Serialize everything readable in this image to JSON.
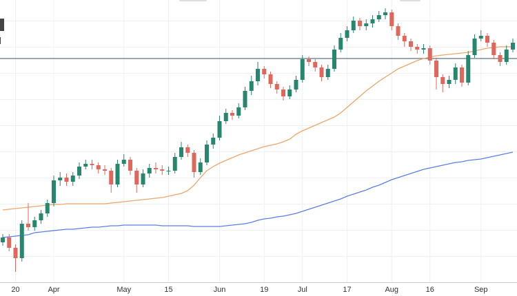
{
  "chart_data": {
    "type": "candlestick",
    "categories": [
      null,
      null,
      "20",
      null,
      null,
      null,
      null,
      null,
      "Apr",
      null,
      null,
      null,
      null,
      null,
      null,
      null,
      null,
      null,
      null,
      "May",
      null,
      null,
      null,
      null,
      null,
      null,
      "15",
      null,
      null,
      null,
      null,
      null,
      null,
      null,
      "Jun",
      null,
      null,
      null,
      null,
      null,
      null,
      "19",
      null,
      null,
      null,
      null,
      null,
      "Jul",
      null,
      null,
      null,
      null,
      null,
      null,
      "17",
      null,
      null,
      null,
      null,
      null,
      null,
      "Aug",
      null,
      null,
      null,
      null,
      null,
      "16",
      null,
      null,
      null,
      null,
      null,
      null,
      null,
      "Sep",
      null,
      null,
      null,
      null,
      null
    ],
    "open": [
      78,
      85,
      70,
      55,
      105,
      100,
      110,
      120,
      135,
      168,
      172,
      166,
      175,
      188,
      192,
      190,
      184,
      182,
      162,
      192,
      198,
      182,
      162,
      178,
      186,
      184,
      182,
      182,
      202,
      216,
      208,
      180,
      194,
      220,
      230,
      254,
      266,
      262,
      274,
      298,
      312,
      330,
      322,
      308,
      300,
      290,
      300,
      314,
      344,
      340,
      332,
      318,
      330,
      358,
      375,
      386,
      400,
      392,
      396,
      402,
      408,
      412,
      392,
      378,
      370,
      362,
      358,
      360,
      342,
      318,
      308,
      314,
      332,
      310,
      350,
      374,
      378,
      368,
      350,
      340,
      358
    ],
    "high": [
      90,
      90,
      75,
      110,
      135,
      115,
      125,
      140,
      175,
      180,
      178,
      180,
      194,
      198,
      198,
      194,
      190,
      186,
      198,
      206,
      202,
      186,
      184,
      192,
      194,
      190,
      188,
      208,
      224,
      220,
      212,
      200,
      226,
      236,
      262,
      272,
      270,
      280,
      304,
      320,
      340,
      334,
      326,
      312,
      304,
      306,
      320,
      350,
      348,
      344,
      336,
      336,
      364,
      382,
      392,
      406,
      404,
      402,
      408,
      414,
      418,
      416,
      396,
      382,
      374,
      366,
      366,
      364,
      346,
      322,
      320,
      338,
      336,
      356,
      380,
      386,
      382,
      372,
      354,
      364,
      374
    ],
    "low": [
      73,
      65,
      35,
      50,
      95,
      95,
      105,
      115,
      130,
      160,
      160,
      160,
      170,
      184,
      184,
      178,
      176,
      150,
      158,
      188,
      176,
      150,
      158,
      172,
      178,
      176,
      176,
      178,
      198,
      202,
      172,
      176,
      190,
      214,
      226,
      250,
      256,
      258,
      270,
      292,
      306,
      316,
      302,
      294,
      284,
      286,
      296,
      310,
      334,
      326,
      312,
      314,
      326,
      354,
      370,
      382,
      386,
      386,
      390,
      398,
      402,
      386,
      372,
      362,
      356,
      352,
      352,
      336,
      300,
      296,
      302,
      308,
      304,
      306,
      346,
      370,
      362,
      344,
      334,
      336,
      354
    ],
    "close": [
      85,
      70,
      55,
      105,
      100,
      110,
      120,
      135,
      168,
      172,
      166,
      175,
      188,
      192,
      190,
      184,
      182,
      162,
      192,
      198,
      182,
      162,
      178,
      186,
      184,
      182,
      182,
      202,
      216,
      208,
      180,
      194,
      220,
      230,
      254,
      266,
      262,
      274,
      298,
      312,
      330,
      322,
      308,
      300,
      290,
      300,
      314,
      344,
      340,
      332,
      318,
      330,
      358,
      375,
      386,
      400,
      392,
      396,
      402,
      408,
      412,
      392,
      378,
      370,
      362,
      358,
      360,
      342,
      318,
      308,
      314,
      332,
      310,
      350,
      374,
      378,
      368,
      350,
      340,
      358,
      368
    ],
    "up_color": "#26876e",
    "down_color": "#e0675c",
    "series": [
      {
        "color": "#f0a468",
        "values": [
          125,
          126,
          127,
          128,
          129,
          130,
          131,
          132,
          133,
          133,
          134,
          134,
          134,
          134,
          134,
          134,
          134,
          135,
          136,
          137,
          138,
          139,
          140,
          141,
          142,
          143,
          145,
          147,
          149,
          153,
          161,
          172,
          182,
          188,
          193,
          197,
          201,
          205,
          208,
          211,
          214,
          217,
          219,
          221,
          224,
          228,
          235,
          240,
          244,
          248,
          252,
          256,
          260,
          266,
          274,
          282,
          290,
          298,
          305,
          312,
          318,
          324,
          330,
          334,
          338,
          342,
          345,
          347,
          349,
          350,
          351,
          352,
          353,
          354,
          356,
          358,
          360,
          361,
          362,
          362,
          362
        ]
      },
      {
        "color": "#5b7ee6",
        "values": [
          85,
          86,
          87,
          88,
          89,
          92,
          93,
          94,
          95,
          96,
          97,
          97,
          98,
          99,
          100,
          100,
          101,
          102,
          102,
          103,
          103,
          103,
          103,
          103,
          103,
          102,
          102,
          102,
          102,
          102,
          101,
          101,
          101,
          101,
          101,
          102,
          103,
          104,
          105,
          107,
          110,
          112,
          113,
          115,
          116,
          118,
          120,
          123,
          126,
          129,
          132,
          135,
          138,
          141,
          145,
          148,
          151,
          154,
          158,
          161,
          165,
          169,
          172,
          175,
          178,
          181,
          184,
          186,
          188,
          190,
          192,
          194,
          195,
          197,
          198,
          199,
          201,
          203,
          205,
          207,
          209
        ]
      }
    ],
    "reference_line": {
      "value": 345,
      "color": "#5e7386"
    },
    "ylim": [
      20,
      430
    ]
  }
}
